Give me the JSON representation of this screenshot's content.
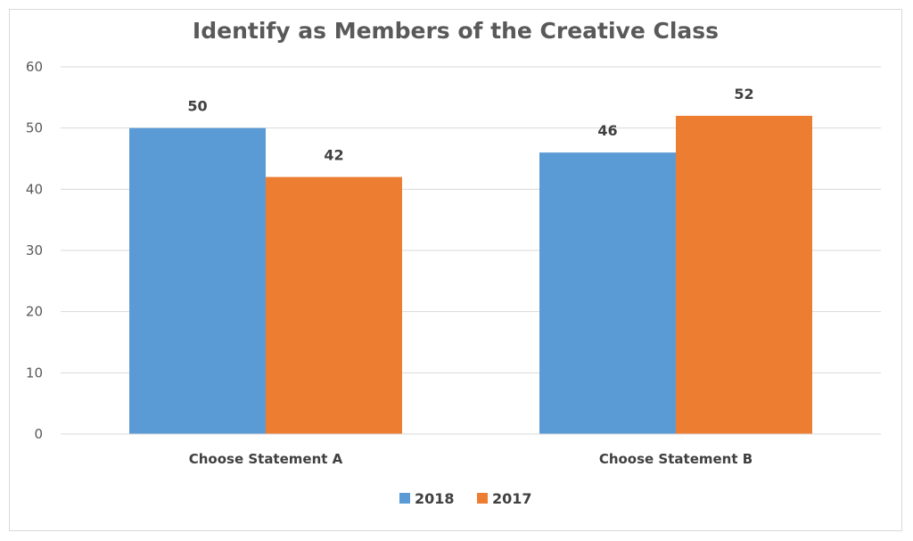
{
  "chart_data": {
    "type": "bar",
    "title": "Identify as Members of the Creative Class",
    "categories": [
      "Choose Statement A",
      "Choose Statement B"
    ],
    "series": [
      {
        "name": "2018",
        "values": [
          50,
          46
        ],
        "color": "#5b9bd5"
      },
      {
        "name": "2017",
        "values": [
          42,
          52
        ],
        "color": "#ed7d31"
      }
    ],
    "ylim": [
      0,
      60
    ],
    "yticks": [
      0,
      10,
      20,
      30,
      40,
      50,
      60
    ],
    "grid": true,
    "legend": "bottom",
    "data_labels": true
  }
}
